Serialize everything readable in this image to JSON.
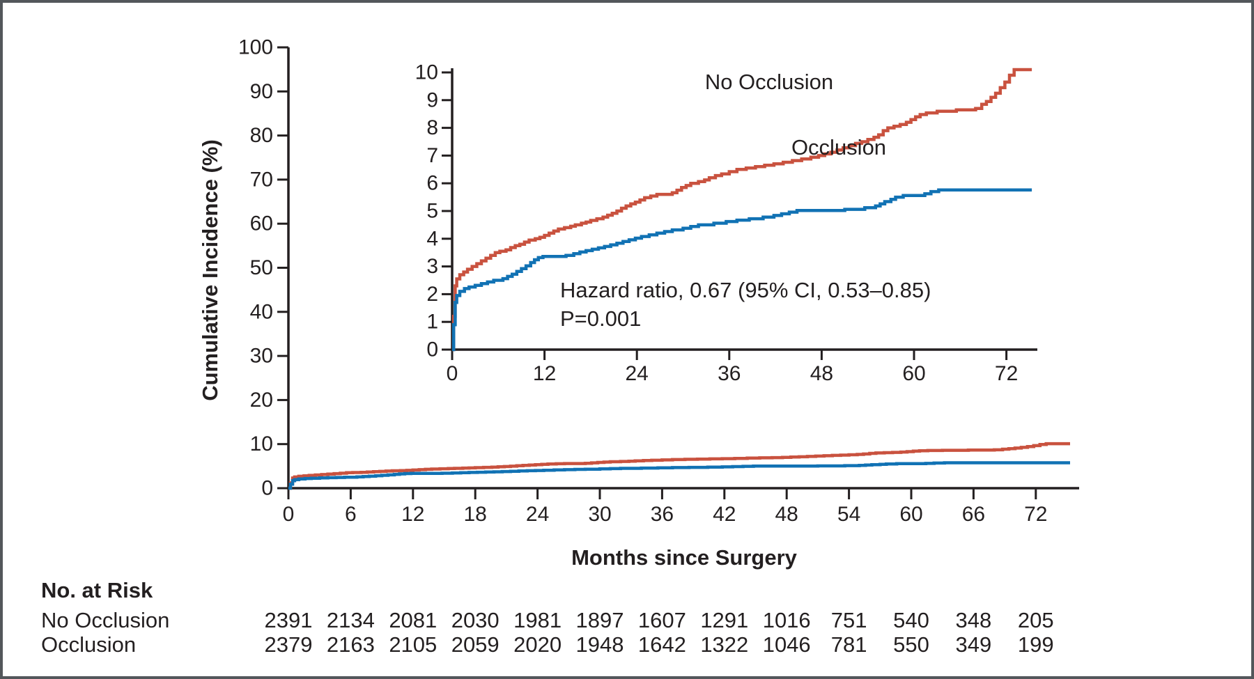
{
  "chart_data": [
    {
      "type": "line",
      "subtype": "step",
      "title": "",
      "xlabel": "Months since Surgery",
      "ylabel": "Cumulative Incidence (%)",
      "xlim": [
        0,
        75.5
      ],
      "ylim": [
        0,
        100
      ],
      "xticks": [
        0,
        6,
        12,
        18,
        24,
        30,
        36,
        42,
        48,
        54,
        60,
        66,
        72
      ],
      "yticks": [
        0,
        10,
        20,
        30,
        40,
        50,
        60,
        70,
        80,
        90,
        100
      ],
      "grid": false,
      "axis_color": "#231f20",
      "series": [
        {
          "name": "No Occlusion",
          "color": "#c9523f",
          "points": [
            [
              0,
              0
            ],
            [
              0.2,
              1.2
            ],
            [
              0.4,
              2.3
            ],
            [
              0.6,
              2.55
            ],
            [
              1,
              2.7
            ],
            [
              1.5,
              2.8
            ],
            [
              2,
              2.9
            ],
            [
              2.6,
              3.0
            ],
            [
              3.2,
              3.1
            ],
            [
              3.8,
              3.2
            ],
            [
              4.4,
              3.3
            ],
            [
              5,
              3.4
            ],
            [
              5.6,
              3.5
            ],
            [
              6.2,
              3.55
            ],
            [
              7,
              3.6
            ],
            [
              7.6,
              3.68
            ],
            [
              8.2,
              3.75
            ],
            [
              8.8,
              3.8
            ],
            [
              9.4,
              3.88
            ],
            [
              10,
              3.95
            ],
            [
              10.8,
              4.0
            ],
            [
              11.4,
              4.05
            ],
            [
              12,
              4.12
            ],
            [
              12.6,
              4.2
            ],
            [
              13.2,
              4.28
            ],
            [
              13.8,
              4.35
            ],
            [
              14.6,
              4.4
            ],
            [
              15.4,
              4.45
            ],
            [
              16,
              4.5
            ],
            [
              16.8,
              4.56
            ],
            [
              17.4,
              4.6
            ],
            [
              18,
              4.66
            ],
            [
              18.8,
              4.72
            ],
            [
              19.6,
              4.78
            ],
            [
              20.2,
              4.85
            ],
            [
              20.8,
              4.92
            ],
            [
              21.4,
              5.0
            ],
            [
              22,
              5.1
            ],
            [
              22.6,
              5.18
            ],
            [
              23.2,
              5.26
            ],
            [
              23.8,
              5.32
            ],
            [
              24.4,
              5.4
            ],
            [
              25,
              5.48
            ],
            [
              25.8,
              5.54
            ],
            [
              26.6,
              5.6
            ],
            [
              28.6,
              5.66
            ],
            [
              29.2,
              5.75
            ],
            [
              29.8,
              5.85
            ],
            [
              30.4,
              5.92
            ],
            [
              31,
              6.0
            ],
            [
              32,
              6.06
            ],
            [
              32.8,
              6.12
            ],
            [
              33.4,
              6.2
            ],
            [
              34.2,
              6.28
            ],
            [
              35,
              6.34
            ],
            [
              36,
              6.42
            ],
            [
              37,
              6.5
            ],
            [
              38.2,
              6.55
            ],
            [
              39.4,
              6.6
            ],
            [
              40.6,
              6.65
            ],
            [
              41.8,
              6.7
            ],
            [
              43,
              6.76
            ],
            [
              44.2,
              6.82
            ],
            [
              45.4,
              6.88
            ],
            [
              46.6,
              6.94
            ],
            [
              47.6,
              7.0
            ],
            [
              48.4,
              7.06
            ],
            [
              49.2,
              7.12
            ],
            [
              50,
              7.2
            ],
            [
              50.8,
              7.28
            ],
            [
              51.6,
              7.36
            ],
            [
              52.4,
              7.44
            ],
            [
              53.2,
              7.5
            ],
            [
              54,
              7.58
            ],
            [
              54.8,
              7.66
            ],
            [
              55.4,
              7.75
            ],
            [
              56,
              7.9
            ],
            [
              56.6,
              8.0
            ],
            [
              57.4,
              8.06
            ],
            [
              58.2,
              8.12
            ],
            [
              59,
              8.2
            ],
            [
              59.6,
              8.3
            ],
            [
              60.2,
              8.4
            ],
            [
              60.8,
              8.48
            ],
            [
              61.6,
              8.54
            ],
            [
              63,
              8.6
            ],
            [
              65.5,
              8.65
            ],
            [
              68,
              8.7
            ],
            [
              68.8,
              8.85
            ],
            [
              69.4,
              8.95
            ],
            [
              70,
              9.1
            ],
            [
              70.6,
              9.25
            ],
            [
              71.2,
              9.45
            ],
            [
              71.8,
              9.65
            ],
            [
              72.4,
              9.9
            ],
            [
              73,
              10.1
            ],
            [
              75.3,
              10.1
            ]
          ]
        },
        {
          "name": "Occlusion",
          "color": "#1172b4",
          "points": [
            [
              0,
              0
            ],
            [
              0.2,
              0.9
            ],
            [
              0.4,
              1.7
            ],
            [
              0.6,
              1.95
            ],
            [
              1,
              2.1
            ],
            [
              1.6,
              2.2
            ],
            [
              2.2,
              2.26
            ],
            [
              3,
              2.32
            ],
            [
              3.8,
              2.38
            ],
            [
              4.6,
              2.44
            ],
            [
              5.4,
              2.5
            ],
            [
              6.6,
              2.56
            ],
            [
              7.2,
              2.64
            ],
            [
              7.8,
              2.72
            ],
            [
              8.4,
              2.82
            ],
            [
              9,
              2.92
            ],
            [
              9.6,
              3.02
            ],
            [
              10.2,
              3.14
            ],
            [
              10.7,
              3.24
            ],
            [
              11.2,
              3.32
            ],
            [
              11.8,
              3.36
            ],
            [
              14.8,
              3.4
            ],
            [
              15.8,
              3.46
            ],
            [
              16.6,
              3.52
            ],
            [
              17.4,
              3.57
            ],
            [
              18.2,
              3.62
            ],
            [
              19,
              3.67
            ],
            [
              19.8,
              3.72
            ],
            [
              20.6,
              3.78
            ],
            [
              21.4,
              3.84
            ],
            [
              22.2,
              3.9
            ],
            [
              23,
              3.96
            ],
            [
              23.8,
              4.02
            ],
            [
              24.6,
              4.08
            ],
            [
              25.6,
              4.14
            ],
            [
              26.6,
              4.2
            ],
            [
              27.6,
              4.26
            ],
            [
              28.6,
              4.32
            ],
            [
              30,
              4.38
            ],
            [
              31,
              4.44
            ],
            [
              32,
              4.5
            ],
            [
              34,
              4.56
            ],
            [
              35.6,
              4.62
            ],
            [
              37,
              4.67
            ],
            [
              38.6,
              4.72
            ],
            [
              40.4,
              4.78
            ],
            [
              41.8,
              4.84
            ],
            [
              42.8,
              4.9
            ],
            [
              43.8,
              4.96
            ],
            [
              44.8,
              5.02
            ],
            [
              51,
              5.06
            ],
            [
              53.6,
              5.12
            ],
            [
              55,
              5.18
            ],
            [
              55.6,
              5.26
            ],
            [
              56.2,
              5.34
            ],
            [
              57,
              5.42
            ],
            [
              57.6,
              5.5
            ],
            [
              58.6,
              5.56
            ],
            [
              61.4,
              5.62
            ],
            [
              62.2,
              5.7
            ],
            [
              63.2,
              5.76
            ],
            [
              75.3,
              5.76
            ]
          ]
        }
      ]
    },
    {
      "type": "line",
      "subtype": "step",
      "title": "",
      "xlabel": "",
      "ylabel": "",
      "xlim": [
        0,
        75.5
      ],
      "ylim": [
        0,
        10
      ],
      "xticks": [
        0,
        12,
        24,
        36,
        48,
        60,
        72
      ],
      "yticks": [
        0,
        1,
        2,
        3,
        4,
        5,
        6,
        7,
        8,
        9,
        10
      ],
      "grid": false,
      "axis_color": "#231f20",
      "series_from": 0,
      "annotation": {
        "line1": "Hazard ratio, 0.67 (95% CI, 0.53–0.85)",
        "line2": "P=0.001"
      }
    }
  ],
  "risk_table": {
    "title": "No. at Risk",
    "timepoints": [
      0,
      6,
      12,
      18,
      24,
      30,
      36,
      42,
      48,
      54,
      60,
      66,
      72
    ],
    "rows": [
      {
        "label": "No Occlusion",
        "values": [
          2391,
          2134,
          2081,
          2030,
          1981,
          1897,
          1607,
          1291,
          1016,
          751,
          540,
          348,
          205
        ]
      },
      {
        "label": "Occlusion",
        "values": [
          2379,
          2163,
          2105,
          2059,
          2020,
          1948,
          1642,
          1322,
          1046,
          781,
          550,
          349,
          199
        ]
      }
    ]
  }
}
